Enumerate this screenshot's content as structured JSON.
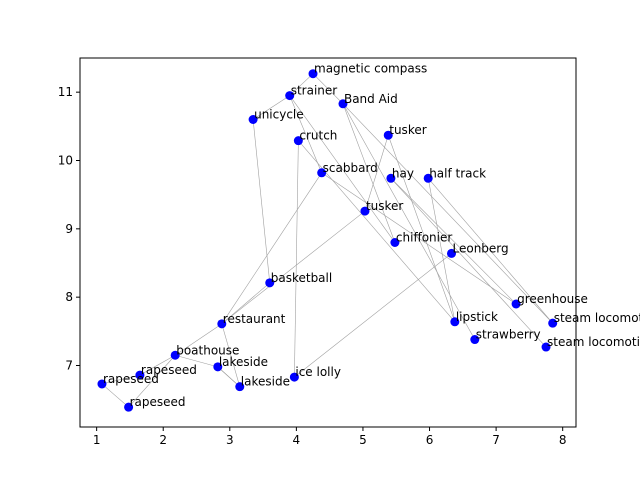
{
  "chart_data": {
    "type": "scatter",
    "title": "",
    "xlabel": "",
    "ylabel": "",
    "xlim": [
      0.75,
      8.2
    ],
    "ylim": [
      6.1,
      11.5
    ],
    "xticks": [
      1,
      2,
      3,
      4,
      5,
      6,
      7,
      8
    ],
    "yticks": [
      7,
      8,
      9,
      10,
      11
    ],
    "grid": false,
    "point_color": "#0000ff",
    "edge_color": "#a0a0a0",
    "points": [
      {
        "id": 0,
        "label": "magnetic compass",
        "x": 4.25,
        "y": 11.27
      },
      {
        "id": 1,
        "label": "strainer",
        "x": 3.9,
        "y": 10.95
      },
      {
        "id": 2,
        "label": "Band Aid",
        "x": 4.7,
        "y": 10.83
      },
      {
        "id": 3,
        "label": "unicycle",
        "x": 3.35,
        "y": 10.6
      },
      {
        "id": 4,
        "label": "tusker",
        "x": 5.38,
        "y": 10.37
      },
      {
        "id": 5,
        "label": "crutch",
        "x": 4.03,
        "y": 10.29
      },
      {
        "id": 6,
        "label": "scabbard",
        "x": 4.38,
        "y": 9.82
      },
      {
        "id": 7,
        "label": "hay",
        "x": 5.42,
        "y": 9.74
      },
      {
        "id": 8,
        "label": "half track",
        "x": 5.98,
        "y": 9.74
      },
      {
        "id": 9,
        "label": "tusker",
        "x": 5.03,
        "y": 9.26
      },
      {
        "id": 10,
        "label": "chiffonier",
        "x": 5.48,
        "y": 8.8
      },
      {
        "id": 11,
        "label": "Leonberg",
        "x": 6.33,
        "y": 8.64
      },
      {
        "id": 12,
        "label": "basketball",
        "x": 3.6,
        "y": 8.21
      },
      {
        "id": 13,
        "label": "greenhouse",
        "x": 7.3,
        "y": 7.9
      },
      {
        "id": 14,
        "label": "lipstick",
        "x": 6.38,
        "y": 7.64
      },
      {
        "id": 15,
        "label": "steam locomotive",
        "x": 7.85,
        "y": 7.62
      },
      {
        "id": 16,
        "label": "restaurant",
        "x": 2.88,
        "y": 7.61
      },
      {
        "id": 17,
        "label": "strawberry",
        "x": 6.68,
        "y": 7.38
      },
      {
        "id": 18,
        "label": "steam locomotive",
        "x": 7.75,
        "y": 7.27
      },
      {
        "id": 19,
        "label": "boathouse",
        "x": 2.18,
        "y": 7.15
      },
      {
        "id": 20,
        "label": "lakeside",
        "x": 2.82,
        "y": 6.98
      },
      {
        "id": 21,
        "label": "rapeseed",
        "x": 1.65,
        "y": 6.86
      },
      {
        "id": 22,
        "label": "ice lolly",
        "x": 3.97,
        "y": 6.83
      },
      {
        "id": 23,
        "label": "rapeseed",
        "x": 1.08,
        "y": 6.73
      },
      {
        "id": 24,
        "label": "lakeside",
        "x": 3.15,
        "y": 6.69
      },
      {
        "id": 25,
        "label": "rapeseed",
        "x": 1.48,
        "y": 6.39
      }
    ],
    "edges": [
      [
        3,
        12
      ],
      [
        12,
        16
      ],
      [
        16,
        19
      ],
      [
        19,
        21
      ],
      [
        21,
        23
      ],
      [
        23,
        25
      ],
      [
        25,
        19
      ],
      [
        19,
        20
      ],
      [
        20,
        24
      ],
      [
        24,
        16
      ],
      [
        16,
        6
      ],
      [
        16,
        9
      ],
      [
        9,
        4
      ],
      [
        5,
        22
      ],
      [
        22,
        11
      ],
      [
        0,
        1
      ],
      [
        1,
        3
      ],
      [
        0,
        2
      ],
      [
        1,
        10
      ],
      [
        2,
        10
      ],
      [
        2,
        17
      ],
      [
        2,
        15
      ],
      [
        4,
        14
      ],
      [
        6,
        1
      ],
      [
        6,
        13
      ],
      [
        7,
        18
      ],
      [
        7,
        13
      ],
      [
        8,
        14
      ],
      [
        8,
        15
      ],
      [
        5,
        14
      ],
      [
        24,
        20
      ]
    ]
  }
}
